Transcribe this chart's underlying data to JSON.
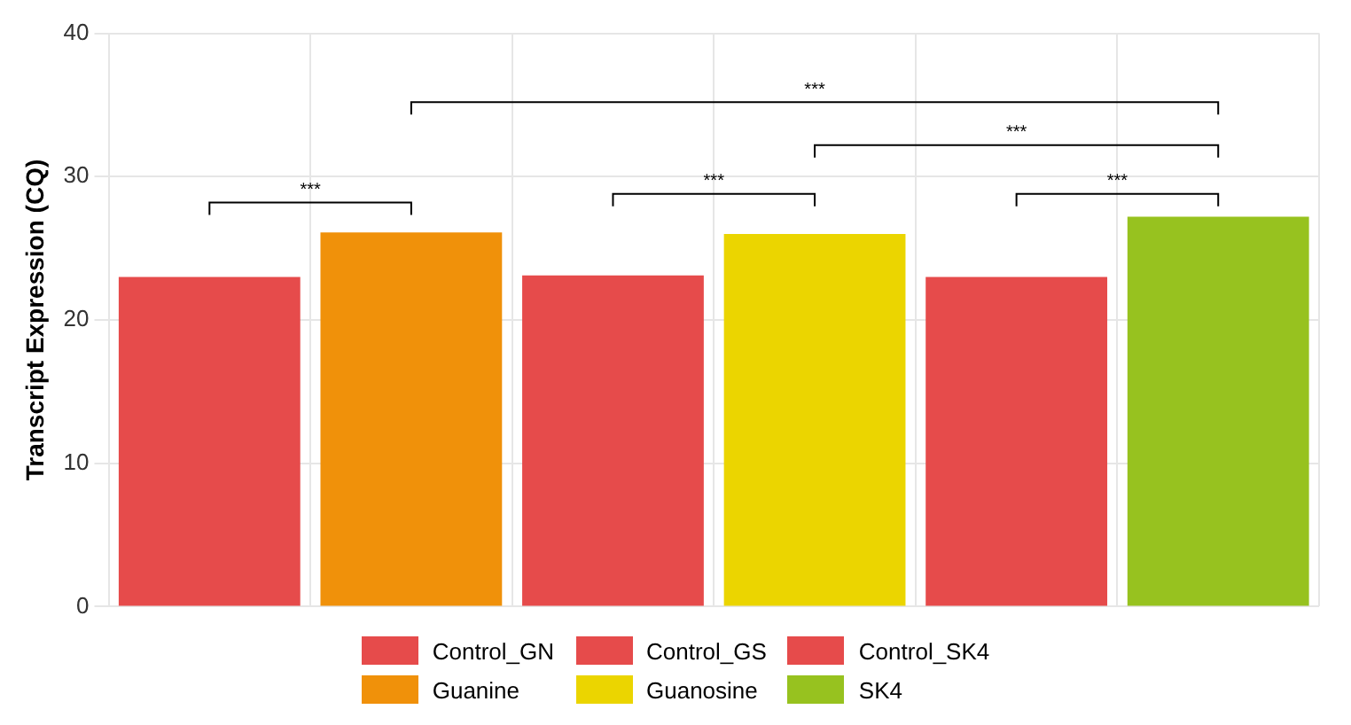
{
  "chart_data": {
    "type": "bar",
    "ylabel": "Transcript Expression (CQ)",
    "categories": [
      null,
      null,
      null,
      null,
      null,
      null
    ],
    "series": [
      {
        "name": "Control_GN",
        "color": "#e64b4b",
        "values": [
          23.0,
          null,
          null,
          null,
          null,
          null
        ]
      },
      {
        "name": "Control_GS",
        "color": "#e64b4b",
        "values": [
          null,
          null,
          23.1,
          null,
          null,
          null
        ]
      },
      {
        "name": "Control_SK4",
        "color": "#e64b4b",
        "values": [
          null,
          null,
          null,
          null,
          23.0,
          null
        ]
      },
      {
        "name": "Guanine",
        "color": "#f0910a",
        "values": [
          null,
          26.1,
          null,
          null,
          null,
          null
        ]
      },
      {
        "name": "Guanosine",
        "color": "#ebd500",
        "values": [
          null,
          null,
          null,
          26.0,
          null,
          null
        ]
      },
      {
        "name": "SK4",
        "color": "#97c21f",
        "values": [
          null,
          null,
          null,
          null,
          null,
          27.2
        ]
      }
    ],
    "ylim": [
      0,
      40
    ],
    "yticks": [
      0,
      10,
      20,
      30,
      40
    ],
    "grid": true,
    "legend": "bottom",
    "annotations": [
      "***",
      "***",
      "***",
      "***",
      "***"
    ]
  }
}
